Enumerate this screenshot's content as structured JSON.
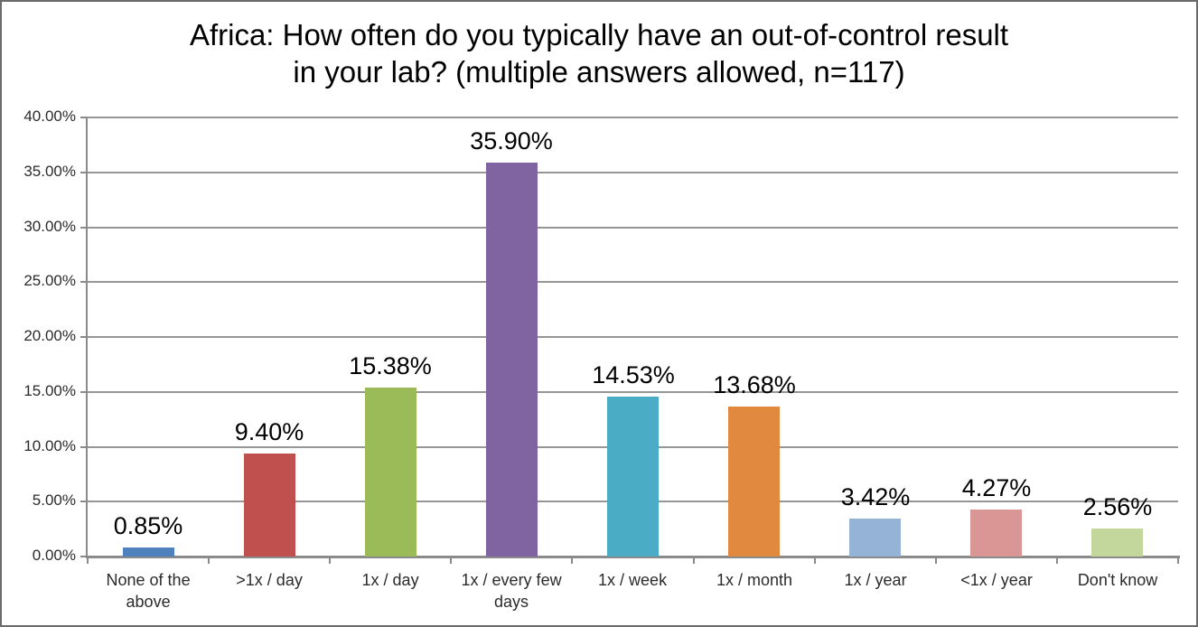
{
  "window": {
    "background_color": "#ffffff",
    "border_color": "#6b6b6b"
  },
  "chart_data": {
    "type": "bar",
    "title": "Africa: How often do you typically have an out-of-control result in your lab? (multiple answers allowed, n=117)",
    "title_lines": [
      "Africa: How often do you typically have an out-of-control result",
      "in your lab? (multiple answers allowed, n=117)"
    ],
    "categories": [
      "None of the above",
      ">1x / day",
      "1x / day",
      "1x / every few days",
      "1x /  week",
      "1x / month",
      "1x / year",
      "<1x / year",
      "Don't know"
    ],
    "values": [
      0.85,
      9.4,
      15.38,
      35.9,
      14.53,
      13.68,
      3.42,
      4.27,
      2.56
    ],
    "value_labels": [
      "0.85%",
      "9.40%",
      "15.38%",
      "35.90%",
      "14.53%",
      "13.68%",
      "3.42%",
      "4.27%",
      "2.56%"
    ],
    "bar_colors": [
      "#4f81bd",
      "#c0504d",
      "#9bbb59",
      "#8064a2",
      "#4bacc6",
      "#e0893f",
      "#95b3d7",
      "#d99694",
      "#c3d69b"
    ],
    "xlabel": "",
    "ylabel": "",
    "ylim": [
      0,
      40
    ],
    "y_tick_step": 5,
    "y_tick_labels": [
      "0.00%",
      "5.00%",
      "10.00%",
      "15.00%",
      "20.00%",
      "25.00%",
      "30.00%",
      "35.00%",
      "40.00%"
    ],
    "grid": true,
    "gridline_color": "#969696",
    "axis_color": "#8a8a8a",
    "legend_position": "none",
    "data_label_color": "#000000",
    "tick_label_color": "#2b2b2b"
  }
}
